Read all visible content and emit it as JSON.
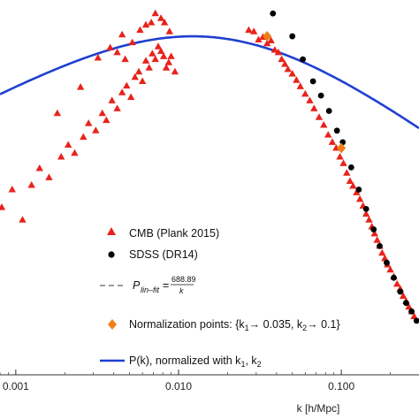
{
  "chart_data": {
    "type": "scatter",
    "xscale": "log",
    "yscale": "log",
    "xlim": [
      0.0008,
      0.3
    ],
    "ylim": [
      0.3,
      6000
    ],
    "xlabel": "k [h/Mpc]",
    "ylabel": "",
    "grid": false,
    "x_ticks": [
      {
        "value": 0.001,
        "label": "0.001"
      },
      {
        "value": 0.01,
        "label": "0.010"
      },
      {
        "value": 0.1,
        "label": "0.100"
      }
    ],
    "legend_position": "lower-right",
    "series": [
      {
        "name": "CMB (Plank 2015)",
        "kind": "scatter",
        "marker": "triangle",
        "color": "#e8231b",
        "points": [
          [
            0.00082,
            25
          ],
          [
            0.00095,
            40
          ],
          [
            0.0011,
            18
          ],
          [
            0.00125,
            45
          ],
          [
            0.0014,
            70
          ],
          [
            0.0016,
            55
          ],
          [
            0.0019,
            95
          ],
          [
            0.0021,
            130
          ],
          [
            0.0023,
            105
          ],
          [
            0.0026,
            160
          ],
          [
            0.0028,
            230
          ],
          [
            0.0031,
            190
          ],
          [
            0.0034,
            300
          ],
          [
            0.0036,
            250
          ],
          [
            0.0039,
            420
          ],
          [
            0.0042,
            340
          ],
          [
            0.0045,
            520
          ],
          [
            0.0048,
            620
          ],
          [
            0.0051,
            460
          ],
          [
            0.0054,
            780
          ],
          [
            0.0057,
            900
          ],
          [
            0.006,
            700
          ],
          [
            0.0063,
            1200
          ],
          [
            0.0066,
            1000
          ],
          [
            0.0069,
            1450
          ],
          [
            0.0072,
            1250
          ],
          [
            0.0075,
            1750
          ],
          [
            0.0078,
            1550
          ],
          [
            0.0081,
            1350
          ],
          [
            0.0084,
            1000
          ],
          [
            0.0087,
            1150
          ],
          [
            0.009,
            1350
          ],
          [
            0.0095,
            900
          ],
          [
            0.0045,
            2400
          ],
          [
            0.0052,
            1950
          ],
          [
            0.0058,
            2700
          ],
          [
            0.0063,
            3100
          ],
          [
            0.0068,
            3300
          ],
          [
            0.0072,
            4200
          ],
          [
            0.0078,
            3700
          ],
          [
            0.0082,
            3300
          ],
          [
            0.0088,
            2600
          ],
          [
            0.0032,
            1300
          ],
          [
            0.0038,
            1700
          ],
          [
            0.0042,
            1500
          ],
          [
            0.0047,
            1250
          ],
          [
            0.0025,
            600
          ],
          [
            0.0018,
            300
          ],
          [
            0.027,
            2700
          ],
          [
            0.029,
            2600
          ],
          [
            0.031,
            2100
          ],
          [
            0.033,
            2250
          ],
          [
            0.035,
            1900
          ],
          [
            0.037,
            2050
          ],
          [
            0.039,
            1600
          ],
          [
            0.041,
            1500
          ],
          [
            0.043,
            1250
          ],
          [
            0.045,
            1100
          ],
          [
            0.047,
            960
          ],
          [
            0.05,
            850
          ],
          [
            0.053,
            720
          ],
          [
            0.056,
            610
          ],
          [
            0.06,
            500
          ],
          [
            0.064,
            420
          ],
          [
            0.068,
            340
          ],
          [
            0.073,
            270
          ],
          [
            0.078,
            220
          ],
          [
            0.083,
            170
          ],
          [
            0.088,
            140
          ],
          [
            0.093,
            120
          ],
          [
            0.098,
            95
          ],
          [
            0.103,
            80
          ],
          [
            0.108,
            62
          ],
          [
            0.113,
            50
          ],
          [
            0.118,
            44
          ],
          [
            0.124,
            37
          ],
          [
            0.13,
            31
          ],
          [
            0.136,
            26
          ],
          [
            0.142,
            21
          ],
          [
            0.148,
            18
          ],
          [
            0.154,
            15
          ],
          [
            0.16,
            12.5
          ],
          [
            0.166,
            10.5
          ],
          [
            0.172,
            9
          ],
          [
            0.178,
            7.5
          ],
          [
            0.185,
            6.5
          ],
          [
            0.192,
            5.5
          ],
          [
            0.2,
            4.8
          ],
          [
            0.21,
            4
          ],
          [
            0.22,
            3.3
          ],
          [
            0.23,
            2.9
          ],
          [
            0.24,
            2.4
          ],
          [
            0.25,
            2.1
          ],
          [
            0.26,
            1.8
          ],
          [
            0.27,
            1.6
          ],
          [
            0.28,
            1.4
          ]
        ]
      },
      {
        "name": "SDSS (DR14)",
        "kind": "scatter",
        "marker": "circle",
        "color": "#000000",
        "points": [
          [
            0.038,
            4200
          ],
          [
            0.05,
            2300
          ],
          [
            0.058,
            1250
          ],
          [
            0.067,
            700
          ],
          [
            0.075,
            480
          ],
          [
            0.084,
            320
          ],
          [
            0.094,
            190
          ],
          [
            0.102,
            140
          ],
          [
            0.115,
            72
          ],
          [
            0.128,
            40
          ],
          [
            0.142,
            24
          ],
          [
            0.158,
            14
          ],
          [
            0.172,
            9
          ],
          [
            0.19,
            5.8
          ],
          [
            0.21,
            3.9
          ],
          [
            0.23,
            2.7
          ],
          [
            0.25,
            2.0
          ],
          [
            0.27,
            1.6
          ],
          [
            0.29,
            1.25
          ]
        ]
      },
      {
        "name": "P_lin-fit = 688.89 / k",
        "kind": "line",
        "dash": "dashed",
        "color": "#9a9a9a",
        "x": [
          0.028,
          0.3
        ]
      },
      {
        "name": "Normalization points: {k1 → 0.035, k2 → 0.1}",
        "kind": "scatter",
        "marker": "diamond",
        "color": "#f07f1a",
        "points": [
          [
            0.035,
            2300
          ],
          [
            0.1,
            120
          ]
        ]
      },
      {
        "name": "P(k), normalized with k1, k2",
        "kind": "line",
        "color": "#1f3fd1",
        "x_range": [
          0.0008,
          0.3
        ],
        "peak_k": 0.016,
        "peak_p": 3350
      }
    ]
  },
  "legend": {
    "cmb_label": "CMB (Plank 2015)",
    "sdss_label": "SDSS (DR14)",
    "fit_prefix": "P",
    "fit_subscript": "lin–fit",
    "fit_eq": "=",
    "fit_numerator": "688.89",
    "fit_denominator": "k",
    "norm_label": "Normalization points: {k",
    "norm_sub1": "1",
    "norm_mid": "→ 0.035, k",
    "norm_sub2": "2",
    "norm_end": "→ 0.1}",
    "pk_label": "P(k), normalized with k",
    "pk_sub1": "1",
    "pk_sep": ", k",
    "pk_sub2": "2"
  }
}
